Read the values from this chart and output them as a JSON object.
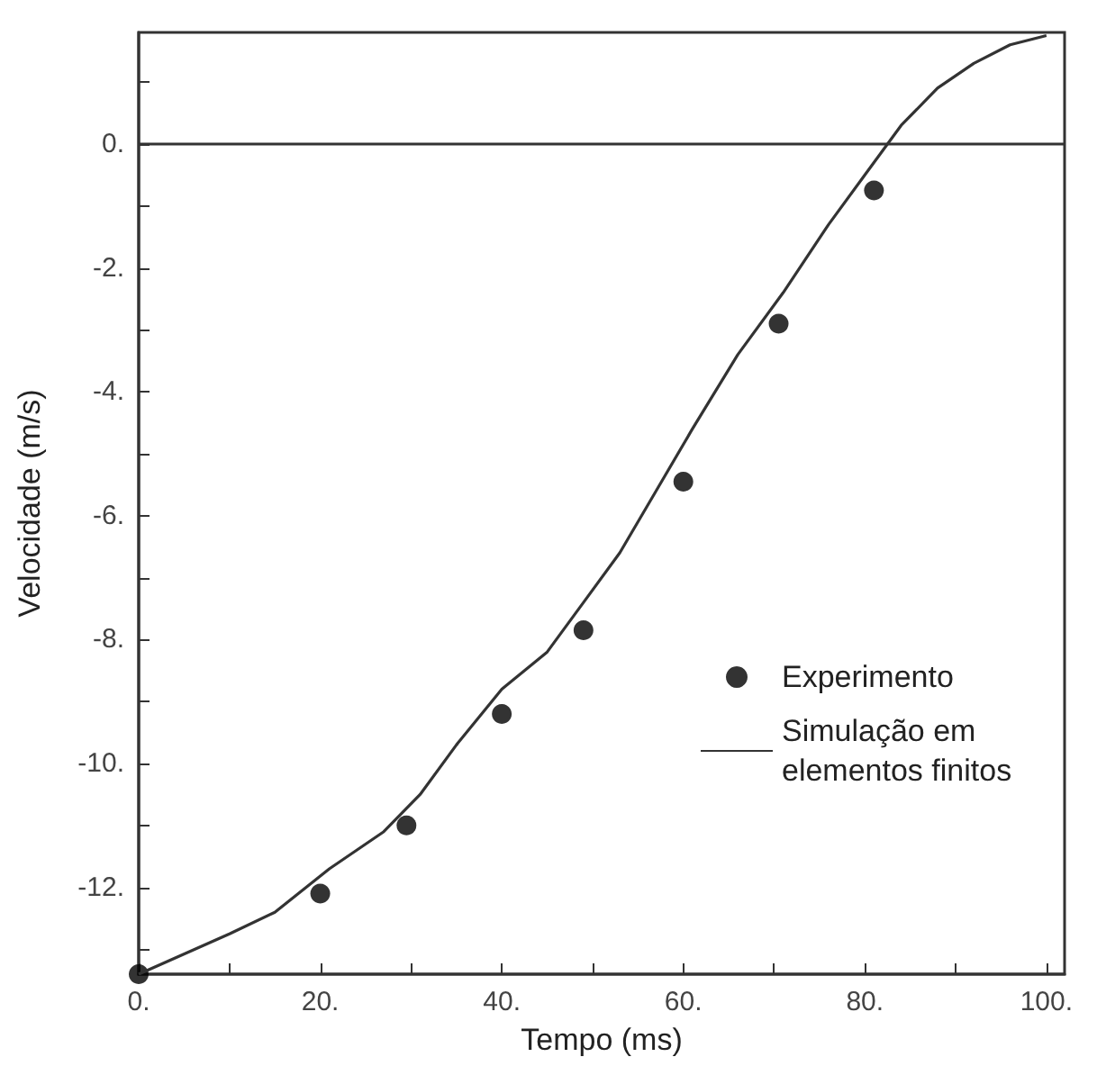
{
  "chart_data": {
    "type": "scatter",
    "xlabel": "Tempo (ms)",
    "ylabel": "Velocidade (m/s)",
    "xlim": [
      0,
      102
    ],
    "ylim": [
      -13.4,
      1.8
    ],
    "xticks": [
      {
        "value": 0,
        "label": "0."
      },
      {
        "value": 10,
        "label": null
      },
      {
        "value": 20,
        "label": "20."
      },
      {
        "value": 30,
        "label": null
      },
      {
        "value": 40,
        "label": "40."
      },
      {
        "value": 50,
        "label": null
      },
      {
        "value": 60,
        "label": "60."
      },
      {
        "value": 70,
        "label": null
      },
      {
        "value": 80,
        "label": "80."
      },
      {
        "value": 90,
        "label": null
      },
      {
        "value": 100,
        "label": "100."
      }
    ],
    "yticks": [
      {
        "value": -13,
        "label": null
      },
      {
        "value": -12,
        "label": "-12."
      },
      {
        "value": -11,
        "label": null
      },
      {
        "value": -10,
        "label": "-10."
      },
      {
        "value": -9,
        "label": null
      },
      {
        "value": -8,
        "label": "-8."
      },
      {
        "value": -7,
        "label": null
      },
      {
        "value": -6,
        "label": "-6."
      },
      {
        "value": -5,
        "label": null
      },
      {
        "value": -4,
        "label": "-4."
      },
      {
        "value": -3,
        "label": null
      },
      {
        "value": -2,
        "label": "-2."
      },
      {
        "value": -1,
        "label": null
      },
      {
        "value": 0,
        "label": "0."
      },
      {
        "value": 1,
        "label": null
      }
    ],
    "ref_lines": [
      {
        "axis": "y",
        "value": 0,
        "color": "#333333"
      }
    ],
    "legend": "right",
    "grid": false,
    "series": [
      {
        "name": "Experimento",
        "marker": "circle",
        "color": "#000000",
        "x": [
          0,
          20,
          29.5,
          40,
          49,
          60,
          70.5,
          81
        ],
        "values": [
          -13.4,
          -12.1,
          -11.0,
          -9.2,
          -7.85,
          -5.45,
          -2.9,
          -0.75
        ]
      },
      {
        "name": "Simulação em elementos finitos",
        "type": "line",
        "marker": "none",
        "color": "#333333",
        "x": [
          0,
          10,
          15,
          21,
          27,
          31,
          35,
          40,
          45,
          49,
          53,
          57,
          61,
          66,
          71,
          76,
          80,
          84,
          88,
          92,
          96,
          100
        ],
        "values": [
          -13.4,
          -12.75,
          -12.4,
          -11.7,
          -11.1,
          -10.5,
          -9.7,
          -8.8,
          -8.2,
          -7.4,
          -6.6,
          -5.6,
          -4.6,
          -3.4,
          -2.4,
          -1.3,
          -0.5,
          0.3,
          0.9,
          1.3,
          1.6,
          1.75
        ]
      }
    ]
  }
}
